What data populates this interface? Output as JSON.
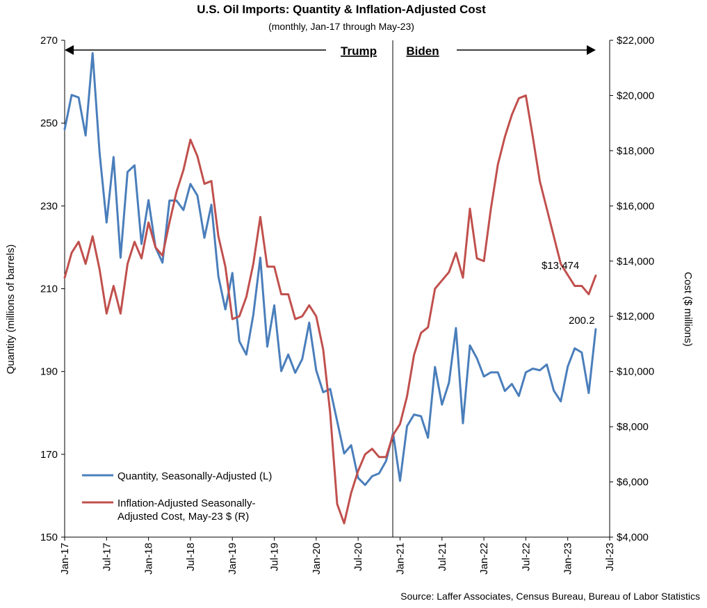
{
  "chart_data": {
    "type": "line",
    "title": "U.S. Oil Imports: Quantity & Inflation-Adjusted Cost",
    "subtitle": "(monthly, Jan-17 through May-23)",
    "ylabel_left": "Quantity (millions of barrels)",
    "ylabel_right": "Cost ($ millions)",
    "source": "Source: Laffer Associates, Census Bureau, Bureau of Labor Statistics",
    "ylim_left": [
      150,
      270
    ],
    "ylim_right": [
      4000,
      22000
    ],
    "y_ticks_left": [
      "150",
      "170",
      "190",
      "210",
      "230",
      "250",
      "270"
    ],
    "y_ticks_right": [
      "$4,000",
      "$6,000",
      "$8,000",
      "$10,000",
      "$12,000",
      "$14,000",
      "$16,000",
      "$18,000",
      "$20,000",
      "$22,000"
    ],
    "x_ticks": [
      "Jan-17",
      "Jul-17",
      "Jan-18",
      "Jul-18",
      "Jan-19",
      "Jul-19",
      "Jan-20",
      "Jul-20",
      "Jan-21",
      "Jul-21",
      "Jan-22",
      "Jul-22",
      "Jan-23",
      "Jul-23"
    ],
    "x_start": "2017-01",
    "x_end": "2023-07",
    "grid": false,
    "legend_position": "bottom-left",
    "annotations": {
      "trump": "Trump",
      "biden": "Biden",
      "last_quantity": "200.2",
      "last_cost": "$13,474"
    },
    "series": [
      {
        "name": "Quantity, Seasonally-Adjusted (L)",
        "axis": "left",
        "color": "#4a7ebb",
        "values": [
          248.5,
          256.8,
          256.2,
          247.0,
          266.9,
          242.8,
          226.0,
          241.8,
          217.5,
          238.2,
          239.8,
          220.8,
          231.4,
          220.0,
          216.3,
          231.3,
          231.3,
          229.0,
          235.3,
          232.5,
          222.3,
          230.3,
          213.0,
          205.0,
          213.8,
          197.3,
          194.1,
          203.7,
          217.5,
          196.0,
          206.0,
          190.1,
          194.1,
          189.7,
          193.0,
          201.8,
          190.3,
          185.0,
          185.8,
          178.0,
          170.2,
          172.2,
          164.3,
          162.6,
          164.7,
          165.4,
          168.4,
          175.1,
          163.6,
          176.8,
          179.6,
          179.2,
          174.0,
          191.1,
          182.0,
          187.3,
          200.5,
          177.5,
          196.3,
          193.2,
          188.8,
          189.8,
          189.8,
          185.3,
          187.0,
          184.1,
          189.8,
          190.7,
          190.3,
          191.7,
          185.4,
          182.8,
          191.2,
          195.6,
          194.6,
          184.8,
          200.2
        ]
      },
      {
        "name": "Inflation-Adjusted Seasonally-Adjusted Cost, May-23 $ (R)",
        "axis": "right",
        "color": "#c0504d",
        "values": [
          13400,
          14300,
          14700,
          13900,
          14900,
          13700,
          12100,
          13100,
          12100,
          13900,
          14700,
          14100,
          15400,
          14500,
          14200,
          15400,
          16500,
          17300,
          18400,
          17800,
          16800,
          16900,
          14900,
          13800,
          11900,
          12000,
          12700,
          13900,
          15600,
          13800,
          13800,
          12800,
          12800,
          11900,
          12000,
          12400,
          12000,
          10800,
          8500,
          5200,
          4500,
          5600,
          6400,
          7000,
          7200,
          6900,
          6900,
          7700,
          8100,
          9100,
          10600,
          11400,
          11600,
          13000,
          13300,
          13600,
          14300,
          13400,
          15900,
          14100,
          14000,
          15900,
          17500,
          18500,
          19300,
          19900,
          20000,
          18500,
          16900,
          15900,
          14900,
          13900,
          13500,
          13100,
          13100,
          12800,
          13474
        ]
      }
    ]
  }
}
